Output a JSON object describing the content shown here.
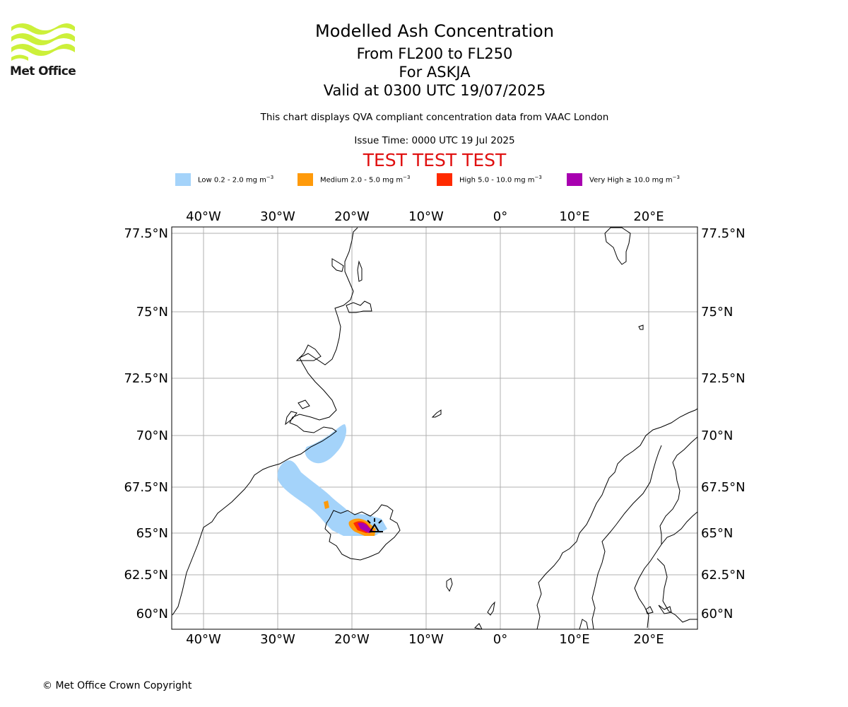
{
  "header": {
    "logo_text": "Met Office",
    "title": "Modelled Ash Concentration",
    "flight_levels": "From FL200 to FL250",
    "volcano": "For ASKJA",
    "valid_time": "Valid at 0300 UTC 19/07/2025",
    "note": "This chart displays QVA compliant concentration data from VAAC London",
    "issue_time": "Issue Time: 0000 UTC 19 Jul 2025",
    "test_banner": "TEST TEST TEST"
  },
  "legend": [
    {
      "label": "Low 0.2 - 2.0 mg m",
      "color": "#a4d3fa"
    },
    {
      "label": "Medium 2.0 - 5.0 mg m",
      "color": "#ff9a0a"
    },
    {
      "label": "High 5.0 - 10.0 mg m",
      "color": "#ff2a00"
    },
    {
      "label": "Very High ≥ 10.0 mg m",
      "color": "#a800b0"
    }
  ],
  "legend_unit_exponent": "−3",
  "map": {
    "lon_ticks": [
      "40°W",
      "30°W",
      "20°W",
      "10°W",
      "0°",
      "10°E",
      "20°E"
    ],
    "lat_ticks": [
      "77.5°N",
      "75°N",
      "72.5°N",
      "70°N",
      "67.5°N",
      "65°N",
      "62.5°N",
      "60°N"
    ],
    "grid_color": "#b0b0b0"
  },
  "footer": {
    "copyright": "© Met Office Crown Copyright"
  }
}
